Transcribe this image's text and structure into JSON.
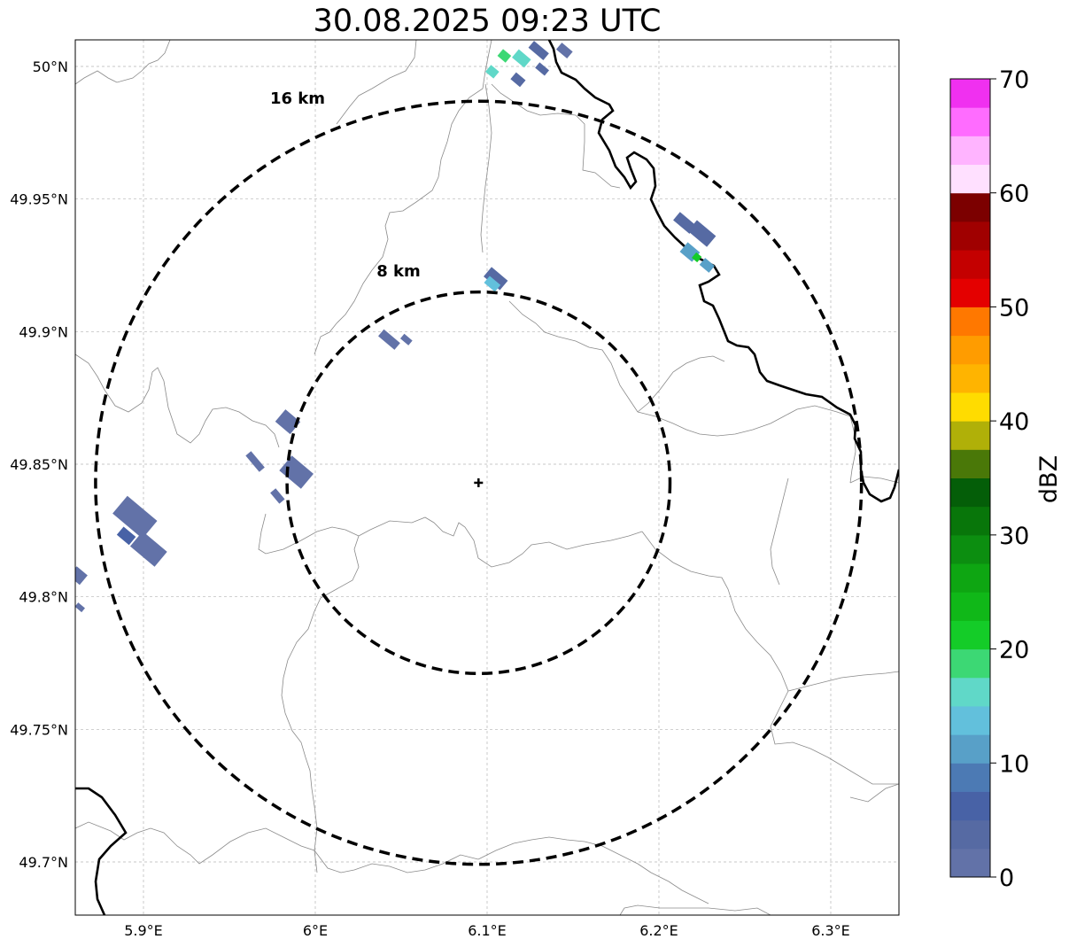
{
  "title": "30.08.2025 09:23 UTC",
  "map": {
    "lon_range": [
      5.86,
      6.34
    ],
    "lat_range": [
      49.68,
      50.01
    ],
    "lon_ticks": [
      {
        "value": 5.9,
        "label": "5.9°E"
      },
      {
        "value": 6.0,
        "label": "6°E"
      },
      {
        "value": 6.1,
        "label": "6.1°E"
      },
      {
        "value": 6.2,
        "label": "6.2°E"
      },
      {
        "value": 6.3,
        "label": "6.3°E"
      }
    ],
    "lat_ticks": [
      {
        "value": 50.0,
        "label": "50°N"
      },
      {
        "value": 49.95,
        "label": "49.95°N"
      },
      {
        "value": 49.9,
        "label": "49.9°N"
      },
      {
        "value": 49.85,
        "label": "49.85°N"
      },
      {
        "value": 49.8,
        "label": "49.8°N"
      },
      {
        "value": 49.75,
        "label": "49.75°N"
      },
      {
        "value": 49.7,
        "label": "49.7°N"
      }
    ],
    "radar_site": {
      "lon": 6.095,
      "lat": 49.843
    },
    "range_rings": [
      {
        "radius_km": 8,
        "label": "8 km"
      },
      {
        "radius_km": 16,
        "label": "16 km"
      }
    ]
  },
  "colorbar": {
    "label": "dBZ",
    "min": 0,
    "max": 70,
    "ticks": [
      {
        "value": 0,
        "label": "0"
      },
      {
        "value": 10,
        "label": "10"
      },
      {
        "value": 20,
        "label": "20"
      },
      {
        "value": 30,
        "label": "30"
      },
      {
        "value": 40,
        "label": "40"
      },
      {
        "value": 50,
        "label": "50"
      },
      {
        "value": 60,
        "label": "60"
      },
      {
        "value": 70,
        "label": "70"
      }
    ],
    "colors": [
      "#6272a8",
      "#566aa3",
      "#4862a6",
      "#4c7ab4",
      "#58a0c8",
      "#62c0dc",
      "#60d8c8",
      "#3cd874",
      "#14cc28",
      "#10b818",
      "#0ea612",
      "#0c8e10",
      "#08760a",
      "#045e08",
      "#4a7808",
      "#b0b008",
      "#ffdc00",
      "#ffb400",
      "#ff9c00",
      "#ff7800",
      "#e40000",
      "#c40000",
      "#a00000",
      "#7c0000",
      "#ffe0ff",
      "#ffb4ff",
      "#ff6cff",
      "#f030f0"
    ]
  },
  "echoes": [
    {
      "lon": 6.12,
      "lat": 50.003,
      "dbz": 15,
      "angle": 40,
      "w": 18,
      "h": 12
    },
    {
      "lon": 6.11,
      "lat": 50.004,
      "dbz": 19,
      "angle": 40,
      "w": 12,
      "h": 10
    },
    {
      "lon": 6.103,
      "lat": 49.998,
      "dbz": 16,
      "angle": 40,
      "w": 12,
      "h": 10
    },
    {
      "lon": 6.13,
      "lat": 50.006,
      "dbz": 4,
      "angle": 40,
      "w": 22,
      "h": 10
    },
    {
      "lon": 6.145,
      "lat": 50.006,
      "dbz": 2,
      "angle": 40,
      "w": 16,
      "h": 10
    },
    {
      "lon": 6.118,
      "lat": 49.995,
      "dbz": 3,
      "angle": 40,
      "w": 14,
      "h": 10
    },
    {
      "lon": 6.132,
      "lat": 49.999,
      "dbz": 3,
      "angle": 40,
      "w": 14,
      "h": 8
    },
    {
      "lon": 6.215,
      "lat": 49.941,
      "dbz": 4,
      "angle": 40,
      "w": 24,
      "h": 12
    },
    {
      "lon": 6.225,
      "lat": 49.937,
      "dbz": 3,
      "angle": 40,
      "w": 28,
      "h": 16
    },
    {
      "lon": 6.218,
      "lat": 49.93,
      "dbz": 12,
      "angle": 40,
      "w": 18,
      "h": 14
    },
    {
      "lon": 6.222,
      "lat": 49.928,
      "dbz": 22,
      "angle": 40,
      "w": 8,
      "h": 8
    },
    {
      "lon": 6.228,
      "lat": 49.925,
      "dbz": 10,
      "angle": 40,
      "w": 14,
      "h": 10
    },
    {
      "lon": 6.105,
      "lat": 49.92,
      "dbz": 3,
      "angle": 40,
      "w": 24,
      "h": 14
    },
    {
      "lon": 6.103,
      "lat": 49.918,
      "dbz": 14,
      "angle": 40,
      "w": 16,
      "h": 10
    },
    {
      "lon": 6.043,
      "lat": 49.897,
      "dbz": 1,
      "angle": 40,
      "w": 24,
      "h": 10
    },
    {
      "lon": 6.053,
      "lat": 49.897,
      "dbz": 1,
      "angle": 40,
      "w": 12,
      "h": 7
    },
    {
      "lon": 5.984,
      "lat": 49.866,
      "dbz": 1,
      "angle": 40,
      "w": 22,
      "h": 18
    },
    {
      "lon": 5.989,
      "lat": 49.847,
      "dbz": 2,
      "angle": 40,
      "w": 32,
      "h": 22
    },
    {
      "lon": 5.965,
      "lat": 49.851,
      "dbz": 1,
      "angle": 50,
      "w": 24,
      "h": 8
    },
    {
      "lon": 5.978,
      "lat": 49.838,
      "dbz": 1,
      "angle": 50,
      "w": 16,
      "h": 8
    },
    {
      "lon": 5.895,
      "lat": 49.83,
      "dbz": 2,
      "angle": 40,
      "w": 44,
      "h": 26
    },
    {
      "lon": 5.903,
      "lat": 49.818,
      "dbz": 2,
      "angle": 40,
      "w": 36,
      "h": 22
    },
    {
      "lon": 5.89,
      "lat": 49.823,
      "dbz": 6,
      "angle": 40,
      "w": 18,
      "h": 12
    },
    {
      "lon": 5.862,
      "lat": 49.808,
      "dbz": 1,
      "angle": 40,
      "w": 16,
      "h": 14
    },
    {
      "lon": 5.863,
      "lat": 49.796,
      "dbz": 0,
      "angle": 40,
      "w": 10,
      "h": 6
    }
  ]
}
